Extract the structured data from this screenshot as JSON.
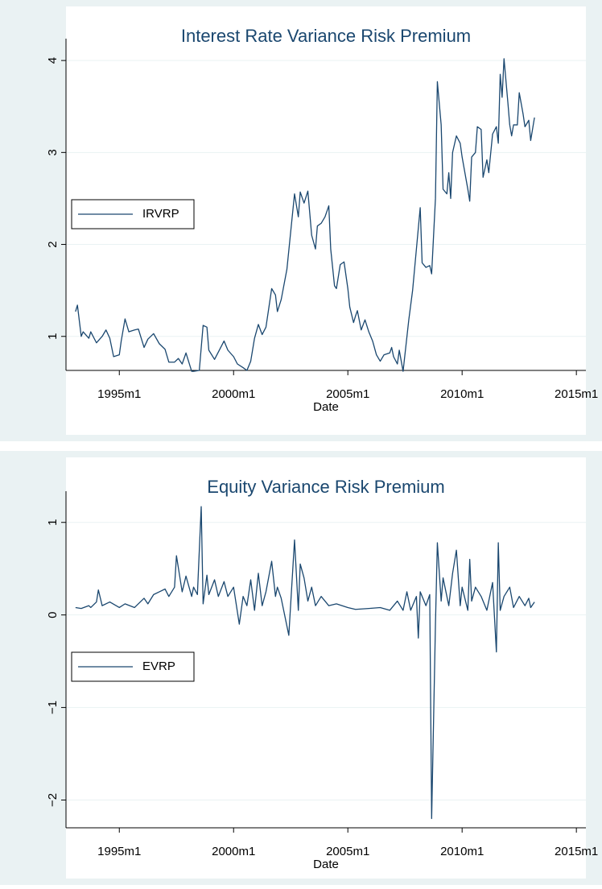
{
  "chart_data": [
    {
      "type": "line",
      "title": "Interest Rate Variance Risk Premium",
      "xlabel": "Date",
      "grid": true,
      "legend": "left",
      "xlim": [
        "1992m9",
        "2015m6"
      ],
      "xticks": [
        "1995m1",
        "2000m1",
        "2005m1",
        "2010m1",
        "2015m1"
      ],
      "ylim": [
        0.63,
        4.15
      ],
      "yticks": [
        1,
        2,
        3,
        4
      ],
      "x": [
        "1993m2",
        "1993m3",
        "1993m5",
        "1993m6",
        "1993m9",
        "1993m10",
        "1994m1",
        "1994m4",
        "1994m6",
        "1994m8",
        "1994m10",
        "1995m1",
        "1995m2",
        "1995m4",
        "1995m6",
        "1995m9",
        "1995m11",
        "1996m2",
        "1996m4",
        "1996m7",
        "1996m10",
        "1997m1",
        "1997m3",
        "1997m6",
        "1997m8",
        "1997m10",
        "1997m12",
        "1998m3",
        "1998m4",
        "1998m7",
        "1998m9",
        "1998m11",
        "1998m12",
        "1999m3",
        "1999m5",
        "1999m8",
        "1999m10",
        "2000m1",
        "2000m3",
        "2000m6",
        "2000m8",
        "2000m10",
        "2000m12",
        "2001m2",
        "2001m4",
        "2001m6",
        "2001m9",
        "2001m11",
        "2001m12",
        "2002m2",
        "2002m5",
        "2002m9",
        "2002m11",
        "2002m12",
        "2003m2",
        "2003m4",
        "2003m6",
        "2003m8",
        "2003m9",
        "2003m11",
        "2004m1",
        "2004m3",
        "2004m4",
        "2004m6",
        "2004m7",
        "2004m9",
        "2004m11",
        "2005m1",
        "2005m2",
        "2005m4",
        "2005m5",
        "2005m6",
        "2005m8",
        "2005m10",
        "2005m12",
        "2006m2",
        "2006m4",
        "2006m6",
        "2006m8",
        "2006m11",
        "2006m12",
        "2007m1",
        "2007m3",
        "2007m4",
        "2007m6",
        "2007m9",
        "2007m11",
        "2008m1",
        "2008m3",
        "2008m4",
        "2008m6",
        "2008m8",
        "2008m9",
        "2008m11",
        "2008m12",
        "2009m2",
        "2009m3",
        "2009m5",
        "2009m6",
        "2009m7",
        "2009m8",
        "2009m10",
        "2009m12",
        "2010m1",
        "2010m4",
        "2010m5",
        "2010m6",
        "2010m8",
        "2010m9",
        "2010m11",
        "2010m12",
        "2011m2",
        "2011m3",
        "2011m5",
        "2011m7",
        "2011m8",
        "2011m9",
        "2011m10",
        "2011m11",
        "2012m1",
        "2012m2",
        "2012m3",
        "2012m4",
        "2012m6",
        "2012m7",
        "2012m9",
        "2012m10",
        "2012m12",
        "2013m1",
        "2013m3"
      ],
      "series": [
        {
          "name": "IRVRP",
          "color": "#1a476f",
          "values": [
            1.27,
            1.34,
            1.0,
            1.05,
            0.98,
            1.05,
            0.93,
            1.0,
            1.07,
            0.98,
            0.78,
            0.8,
            0.95,
            1.19,
            1.05,
            1.07,
            1.08,
            0.88,
            0.97,
            1.03,
            0.92,
            0.86,
            0.72,
            0.72,
            0.76,
            0.7,
            0.82,
            0.62,
            0.62,
            0.63,
            1.12,
            1.1,
            0.85,
            0.75,
            0.83,
            0.95,
            0.85,
            0.78,
            0.7,
            0.66,
            0.63,
            0.73,
            0.98,
            1.13,
            1.02,
            1.1,
            1.52,
            1.45,
            1.27,
            1.4,
            1.73,
            2.55,
            2.3,
            2.57,
            2.45,
            2.58,
            2.1,
            1.95,
            2.2,
            2.23,
            2.3,
            2.42,
            1.95,
            1.55,
            1.52,
            1.78,
            1.81,
            1.52,
            1.32,
            1.15,
            1.22,
            1.28,
            1.07,
            1.18,
            1.05,
            0.95,
            0.8,
            0.73,
            0.8,
            0.82,
            0.88,
            0.78,
            0.7,
            0.85,
            0.62,
            1.18,
            1.5,
            1.95,
            2.4,
            1.8,
            1.75,
            1.77,
            1.68,
            2.5,
            3.77,
            3.3,
            2.6,
            2.55,
            2.78,
            2.5,
            3.0,
            3.18,
            3.1,
            2.95,
            2.6,
            2.47,
            2.95,
            3.0,
            3.28,
            3.25,
            2.73,
            2.92,
            2.78,
            3.2,
            3.28,
            3.1,
            3.85,
            3.6,
            4.02,
            3.55,
            3.3,
            3.18,
            3.3,
            3.3,
            3.65,
            3.42,
            3.28,
            3.35,
            3.13,
            3.38
          ]
        }
      ]
    },
    {
      "type": "line",
      "title": "Equity Variance Risk Premium",
      "xlabel": "Date",
      "grid": true,
      "legend": "left",
      "xlim": [
        "1992m9",
        "2015m6"
      ],
      "xticks": [
        "1995m1",
        "2000m1",
        "2005m1",
        "2010m1",
        "2015m1"
      ],
      "ylim": [
        -2.3,
        1.25
      ],
      "yticks": [
        {
          "value": -2,
          "label": "−2"
        },
        {
          "value": -1,
          "label": "−1"
        },
        0,
        1
      ],
      "x": [
        "1993m2",
        "1993m5",
        "1993m9",
        "1993m10",
        "1994m1",
        "1994m2",
        "1994m4",
        "1994m8",
        "1995m1",
        "1995m4",
        "1995m9",
        "1996m2",
        "1996m4",
        "1996m7",
        "1996m10",
        "1997m1",
        "1997m3",
        "1997m6",
        "1997m7",
        "1997m10",
        "1997m12",
        "1998m3",
        "1998m4",
        "1998m6",
        "1998m8",
        "1998m9",
        "1998m11",
        "1998m12",
        "1999m3",
        "1999m5",
        "1999m8",
        "1999m10",
        "2000m1",
        "2000m4",
        "2000m6",
        "2000m8",
        "2000m10",
        "2000m12",
        "2001m2",
        "2001m4",
        "2001m6",
        "2001m9",
        "2001m11",
        "2001m12",
        "2002m2",
        "2002m6",
        "2002m9",
        "2002m11",
        "2002m12",
        "2003m2",
        "2003m4",
        "2003m6",
        "2003m8",
        "2003m11",
        "2004m3",
        "2004m7",
        "2005m1",
        "2005m5",
        "2005m12",
        "2006m6",
        "2006m11",
        "2007m3",
        "2007m6",
        "2007m8",
        "2007m10",
        "2008m1",
        "2008m2",
        "2008m3",
        "2008m6",
        "2008m8",
        "2008m9",
        "2008m11",
        "2008m12",
        "2009m2",
        "2009m3",
        "2009m6",
        "2009m8",
        "2009m10",
        "2009m12",
        "2010m1",
        "2010m4",
        "2010m5",
        "2010m6",
        "2010m8",
        "2010m11",
        "2011m2",
        "2011m5",
        "2011m7",
        "2011m8",
        "2011m9",
        "2011m11",
        "2012m2",
        "2012m4",
        "2012m7",
        "2012m10",
        "2012m12",
        "2013m1",
        "2013m3"
      ],
      "series": [
        {
          "name": "EVRP",
          "color": "#1a476f",
          "values": [
            0.08,
            0.07,
            0.1,
            0.08,
            0.14,
            0.27,
            0.1,
            0.14,
            0.08,
            0.12,
            0.08,
            0.18,
            0.12,
            0.22,
            0.25,
            0.28,
            0.2,
            0.3,
            0.64,
            0.25,
            0.42,
            0.2,
            0.3,
            0.22,
            1.17,
            0.12,
            0.43,
            0.22,
            0.38,
            0.2,
            0.36,
            0.2,
            0.3,
            -0.1,
            0.2,
            0.1,
            0.38,
            0.05,
            0.45,
            0.1,
            0.25,
            0.58,
            0.2,
            0.3,
            0.18,
            -0.22,
            0.81,
            0.05,
            0.55,
            0.4,
            0.15,
            0.3,
            0.1,
            0.2,
            0.1,
            0.12,
            0.08,
            0.06,
            0.07,
            0.08,
            0.05,
            0.15,
            0.05,
            0.25,
            0.05,
            0.2,
            -0.25,
            0.25,
            0.1,
            0.22,
            -2.2,
            -0.1,
            0.78,
            0.15,
            0.4,
            0.1,
            0.45,
            0.7,
            0.1,
            0.3,
            0.05,
            0.6,
            0.15,
            0.3,
            0.2,
            0.05,
            0.35,
            -0.4,
            0.78,
            0.05,
            0.2,
            0.3,
            0.08,
            0.2,
            0.1,
            0.18,
            0.08,
            0.14
          ]
        }
      ]
    }
  ]
}
